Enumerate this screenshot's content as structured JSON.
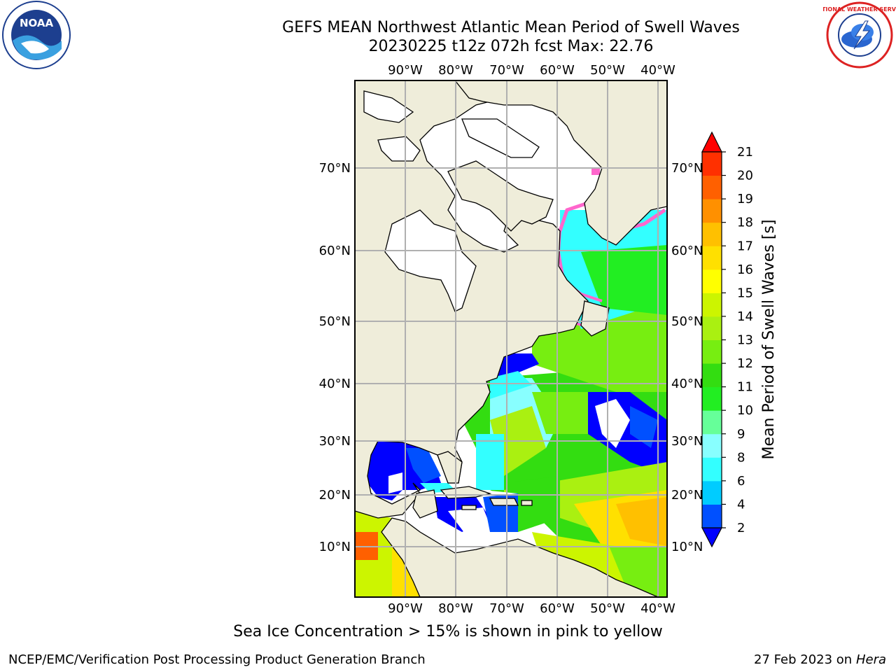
{
  "header": {
    "title_line1": "GEFS MEAN Northwest Atlantic Mean Period of Swell Waves",
    "title_line2": "20230225 t12z 072h fcst   Max: 22.76"
  },
  "map": {
    "lon_ticks_top": [
      "90°W",
      "80°W",
      "70°W",
      "60°W",
      "50°W",
      "40°W"
    ],
    "lon_ticks_bottom": [
      "90°W",
      "80°W",
      "70°W",
      "60°W",
      "50°W",
      "40°W"
    ],
    "lat_ticks_left": [
      "70°N",
      "60°N",
      "50°N",
      "40°N",
      "30°N",
      "20°N",
      "10°N"
    ],
    "lat_ticks_right": [
      "70°N",
      "60°N",
      "50°N",
      "40°N",
      "30°N",
      "20°N",
      "10°N"
    ],
    "land_color": "#efedda",
    "ice_color": "#ff66cc",
    "max_value": 22.76
  },
  "colorbar": {
    "label": "Mean Period of Swell Waves [s]",
    "ticks": [
      "2",
      "4",
      "6",
      "8",
      "9",
      "10",
      "11",
      "12",
      "13",
      "14",
      "15",
      "16",
      "17",
      "18",
      "19",
      "20",
      "21"
    ],
    "colors": [
      "#0050ff",
      "#00ccff",
      "#33ffff",
      "#88ffff",
      "#66ff99",
      "#22ee22",
      "#33dd11",
      "#77ee11",
      "#aaf011",
      "#ccf500",
      "#ffff00",
      "#ffe000",
      "#ffc000",
      "#ff9000",
      "#ff6000",
      "#ff3000"
    ],
    "under_color": "#0000ff",
    "over_color": "#ff0000"
  },
  "footer": {
    "ice_note": "Sea Ice Concentration > 15% is shown in pink to yellow",
    "credit": "NCEP/EMC/Verification Post Processing Product Generation Branch",
    "date": "27 Feb 2023 on",
    "host": "Hera"
  },
  "logos": {
    "noaa_text": "NOAA",
    "nws_text": "NATIONAL WEATHER SERVICE"
  }
}
